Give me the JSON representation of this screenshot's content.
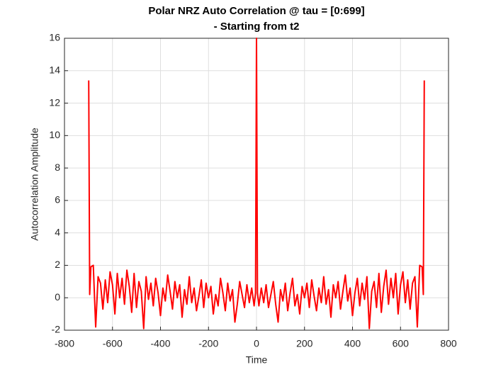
{
  "chart_data": {
    "type": "line",
    "title": [
      "Polar NRZ Auto Correlation @ tau = [0:699]",
      "- Starting from t2"
    ],
    "xlabel": "Time",
    "ylabel": "Autocorrelation Amplitude",
    "xlim": [
      -800,
      800
    ],
    "xticks": [
      -800,
      -600,
      -400,
      -200,
      0,
      200,
      400,
      600,
      800
    ],
    "ylim": [
      -2,
      16
    ],
    "yticks": [
      -2,
      0,
      2,
      4,
      6,
      8,
      10,
      12,
      14,
      16
    ],
    "grid": true,
    "color": "#ff0000",
    "x": [
      -699,
      -695,
      -690,
      -680,
      -670,
      -660,
      -650,
      -640,
      -630,
      -620,
      -610,
      -600,
      -590,
      -580,
      -570,
      -560,
      -550,
      -540,
      -530,
      -520,
      -510,
      -500,
      -490,
      -480,
      -470,
      -460,
      -450,
      -440,
      -430,
      -420,
      -410,
      -400,
      -390,
      -380,
      -370,
      -360,
      -350,
      -340,
      -330,
      -320,
      -310,
      -300,
      -290,
      -280,
      -270,
      -260,
      -250,
      -240,
      -230,
      -220,
      -210,
      -200,
      -190,
      -180,
      -170,
      -160,
      -150,
      -140,
      -130,
      -120,
      -110,
      -100,
      -90,
      -80,
      -70,
      -60,
      -50,
      -40,
      -30,
      -20,
      -10,
      -4,
      0,
      4,
      10,
      20,
      30,
      40,
      50,
      60,
      70,
      80,
      90,
      100,
      110,
      120,
      130,
      140,
      150,
      160,
      170,
      180,
      190,
      200,
      210,
      220,
      230,
      240,
      250,
      260,
      270,
      280,
      290,
      300,
      310,
      320,
      330,
      340,
      350,
      360,
      370,
      380,
      390,
      400,
      410,
      420,
      430,
      440,
      450,
      460,
      470,
      480,
      490,
      500,
      510,
      520,
      530,
      540,
      550,
      560,
      570,
      580,
      590,
      600,
      610,
      620,
      630,
      640,
      650,
      660,
      670,
      680,
      690,
      695,
      699
    ],
    "values": [
      13.4,
      0.2,
      1.9,
      2.0,
      -1.8,
      1.3,
      0.9,
      -0.7,
      1.1,
      -0.3,
      1.6,
      0.8,
      -1.0,
      1.5,
      0.0,
      1.2,
      -0.4,
      1.7,
      0.7,
      -0.9,
      1.5,
      -0.6,
      1.0,
      0.4,
      -1.9,
      1.3,
      -0.1,
      0.9,
      -0.5,
      1.2,
      0.3,
      -1.1,
      0.6,
      -0.2,
      1.4,
      0.4,
      -0.7,
      1.0,
      0.0,
      0.8,
      -1.2,
      0.5,
      -0.4,
      1.3,
      -0.3,
      0.6,
      -0.8,
      0.1,
      1.1,
      -0.6,
      0.9,
      0.0,
      0.7,
      -1.0,
      0.2,
      -0.5,
      1.2,
      0.3,
      -0.8,
      0.9,
      -0.2,
      0.5,
      -1.5,
      -0.4,
      1.0,
      0.2,
      -0.6,
      0.8,
      -0.3,
      0.6,
      -0.5,
      0.3,
      16,
      0.3,
      -0.5,
      0.6,
      -0.3,
      0.8,
      -0.6,
      0.2,
      1.0,
      -0.4,
      -1.5,
      0.5,
      -0.2,
      0.9,
      -0.8,
      0.3,
      1.2,
      -0.5,
      0.2,
      -1.0,
      0.7,
      0.0,
      0.9,
      -0.6,
      1.1,
      0.1,
      -0.8,
      0.6,
      -0.3,
      1.3,
      -0.4,
      0.5,
      -1.2,
      0.8,
      0.0,
      1.0,
      -0.7,
      0.4,
      1.4,
      -0.2,
      0.6,
      -1.1,
      0.3,
      1.2,
      -0.5,
      0.9,
      -0.1,
      1.3,
      -1.9,
      0.4,
      1.0,
      -0.6,
      1.5,
      -0.9,
      0.7,
      1.7,
      -0.4,
      1.2,
      0.0,
      1.5,
      -1.0,
      0.8,
      1.6,
      -0.3,
      1.1,
      -0.7,
      0.9,
      1.3,
      -1.8,
      2.0,
      1.9,
      0.2,
      13.4
    ]
  }
}
